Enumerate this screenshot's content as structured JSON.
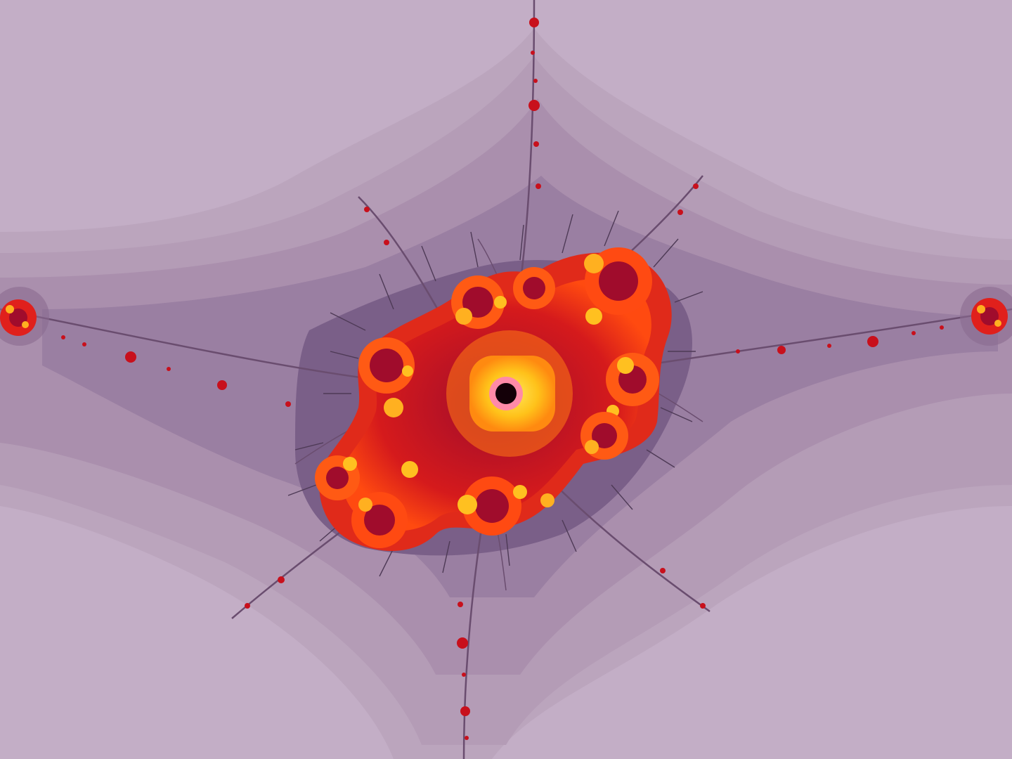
{
  "image": {
    "subject": "mandelbrot-fractal-minibrot",
    "palette": {
      "background_outer": "#c3aec6",
      "band_1": "#bba5bd",
      "band_2": "#b49cb6",
      "band_3": "#aa8fad",
      "band_4": "#9a7fa2",
      "band_5": "#7a5f88",
      "filament": "#6a4d6f",
      "deep_red": "#8a0b2a",
      "red": "#e0201c",
      "orange": "#ff6a10",
      "yellow": "#ffd21a",
      "core_pink": "#ff77a8",
      "core_black": "#140008"
    }
  }
}
